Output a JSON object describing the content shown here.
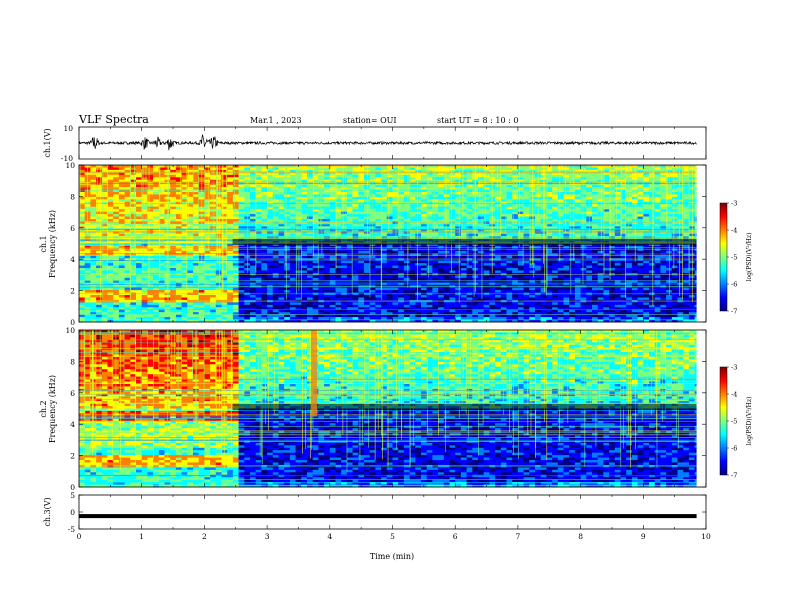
{
  "header": {
    "title": "VLF Spectra",
    "date": "Mar.1 , 2023",
    "station": "station= OUI",
    "start": "start  UT =  8 : 10 : 0"
  },
  "colors": {
    "colormap": [
      "#00007f",
      "#0000ff",
      "#007fff",
      "#00ffff",
      "#7fff7f",
      "#ffff00",
      "#ff7f00",
      "#ff0000",
      "#7f0000"
    ]
  },
  "chart_data": [
    {
      "type": "line",
      "name": "ch1-waveform",
      "ylabel": "ch.1(V)",
      "ylim": [
        -10,
        10
      ],
      "yticks": [
        10,
        -10
      ],
      "xlim": [
        0,
        10
      ],
      "bursts": [
        {
          "t": 0.25,
          "amp": 4.5
        },
        {
          "t": 1.05,
          "amp": 3.5
        },
        {
          "t": 1.25,
          "amp": 3.0
        },
        {
          "t": 1.45,
          "amp": 4.5
        },
        {
          "t": 2.0,
          "amp": 7.0
        },
        {
          "t": 2.15,
          "amp": 4.0
        }
      ],
      "noise_level": 0.8
    },
    {
      "type": "heatmap",
      "name": "ch1-spectrogram",
      "ylabel": "ch.1\nFrequency (kHz)",
      "ylim": [
        0,
        10
      ],
      "yticks": [
        0,
        2,
        4,
        6,
        8,
        10
      ],
      "xlim": [
        0,
        10
      ],
      "colorbar": {
        "label": "log(PSD)(V²/Hz)",
        "range": [
          -7,
          -3
        ],
        "ticks": [
          -3,
          -4,
          -5,
          -6,
          -7
        ]
      }
    },
    {
      "type": "heatmap",
      "name": "ch2-spectrogram",
      "ylabel": "ch.2\nFrequency (kHz)",
      "ylim": [
        0,
        10
      ],
      "yticks": [
        0,
        2,
        4,
        6,
        8,
        10
      ],
      "xlim": [
        0,
        10
      ],
      "colorbar": {
        "label": "log(PSD)(V²/Hz)",
        "range": [
          -7,
          -3
        ],
        "ticks": [
          -3,
          -4,
          -5,
          -6,
          -7
        ]
      }
    },
    {
      "type": "line",
      "name": "ch3-signal",
      "ylabel": "ch.3(V)",
      "ylim": [
        -5,
        5
      ],
      "yticks": [
        5,
        0,
        -5
      ],
      "xlim": [
        0,
        10
      ],
      "value": -1.2,
      "xlabel": "Time (min)",
      "xticks": [
        0,
        1,
        2,
        3,
        4,
        5,
        6,
        7,
        8,
        9,
        10
      ]
    }
  ]
}
